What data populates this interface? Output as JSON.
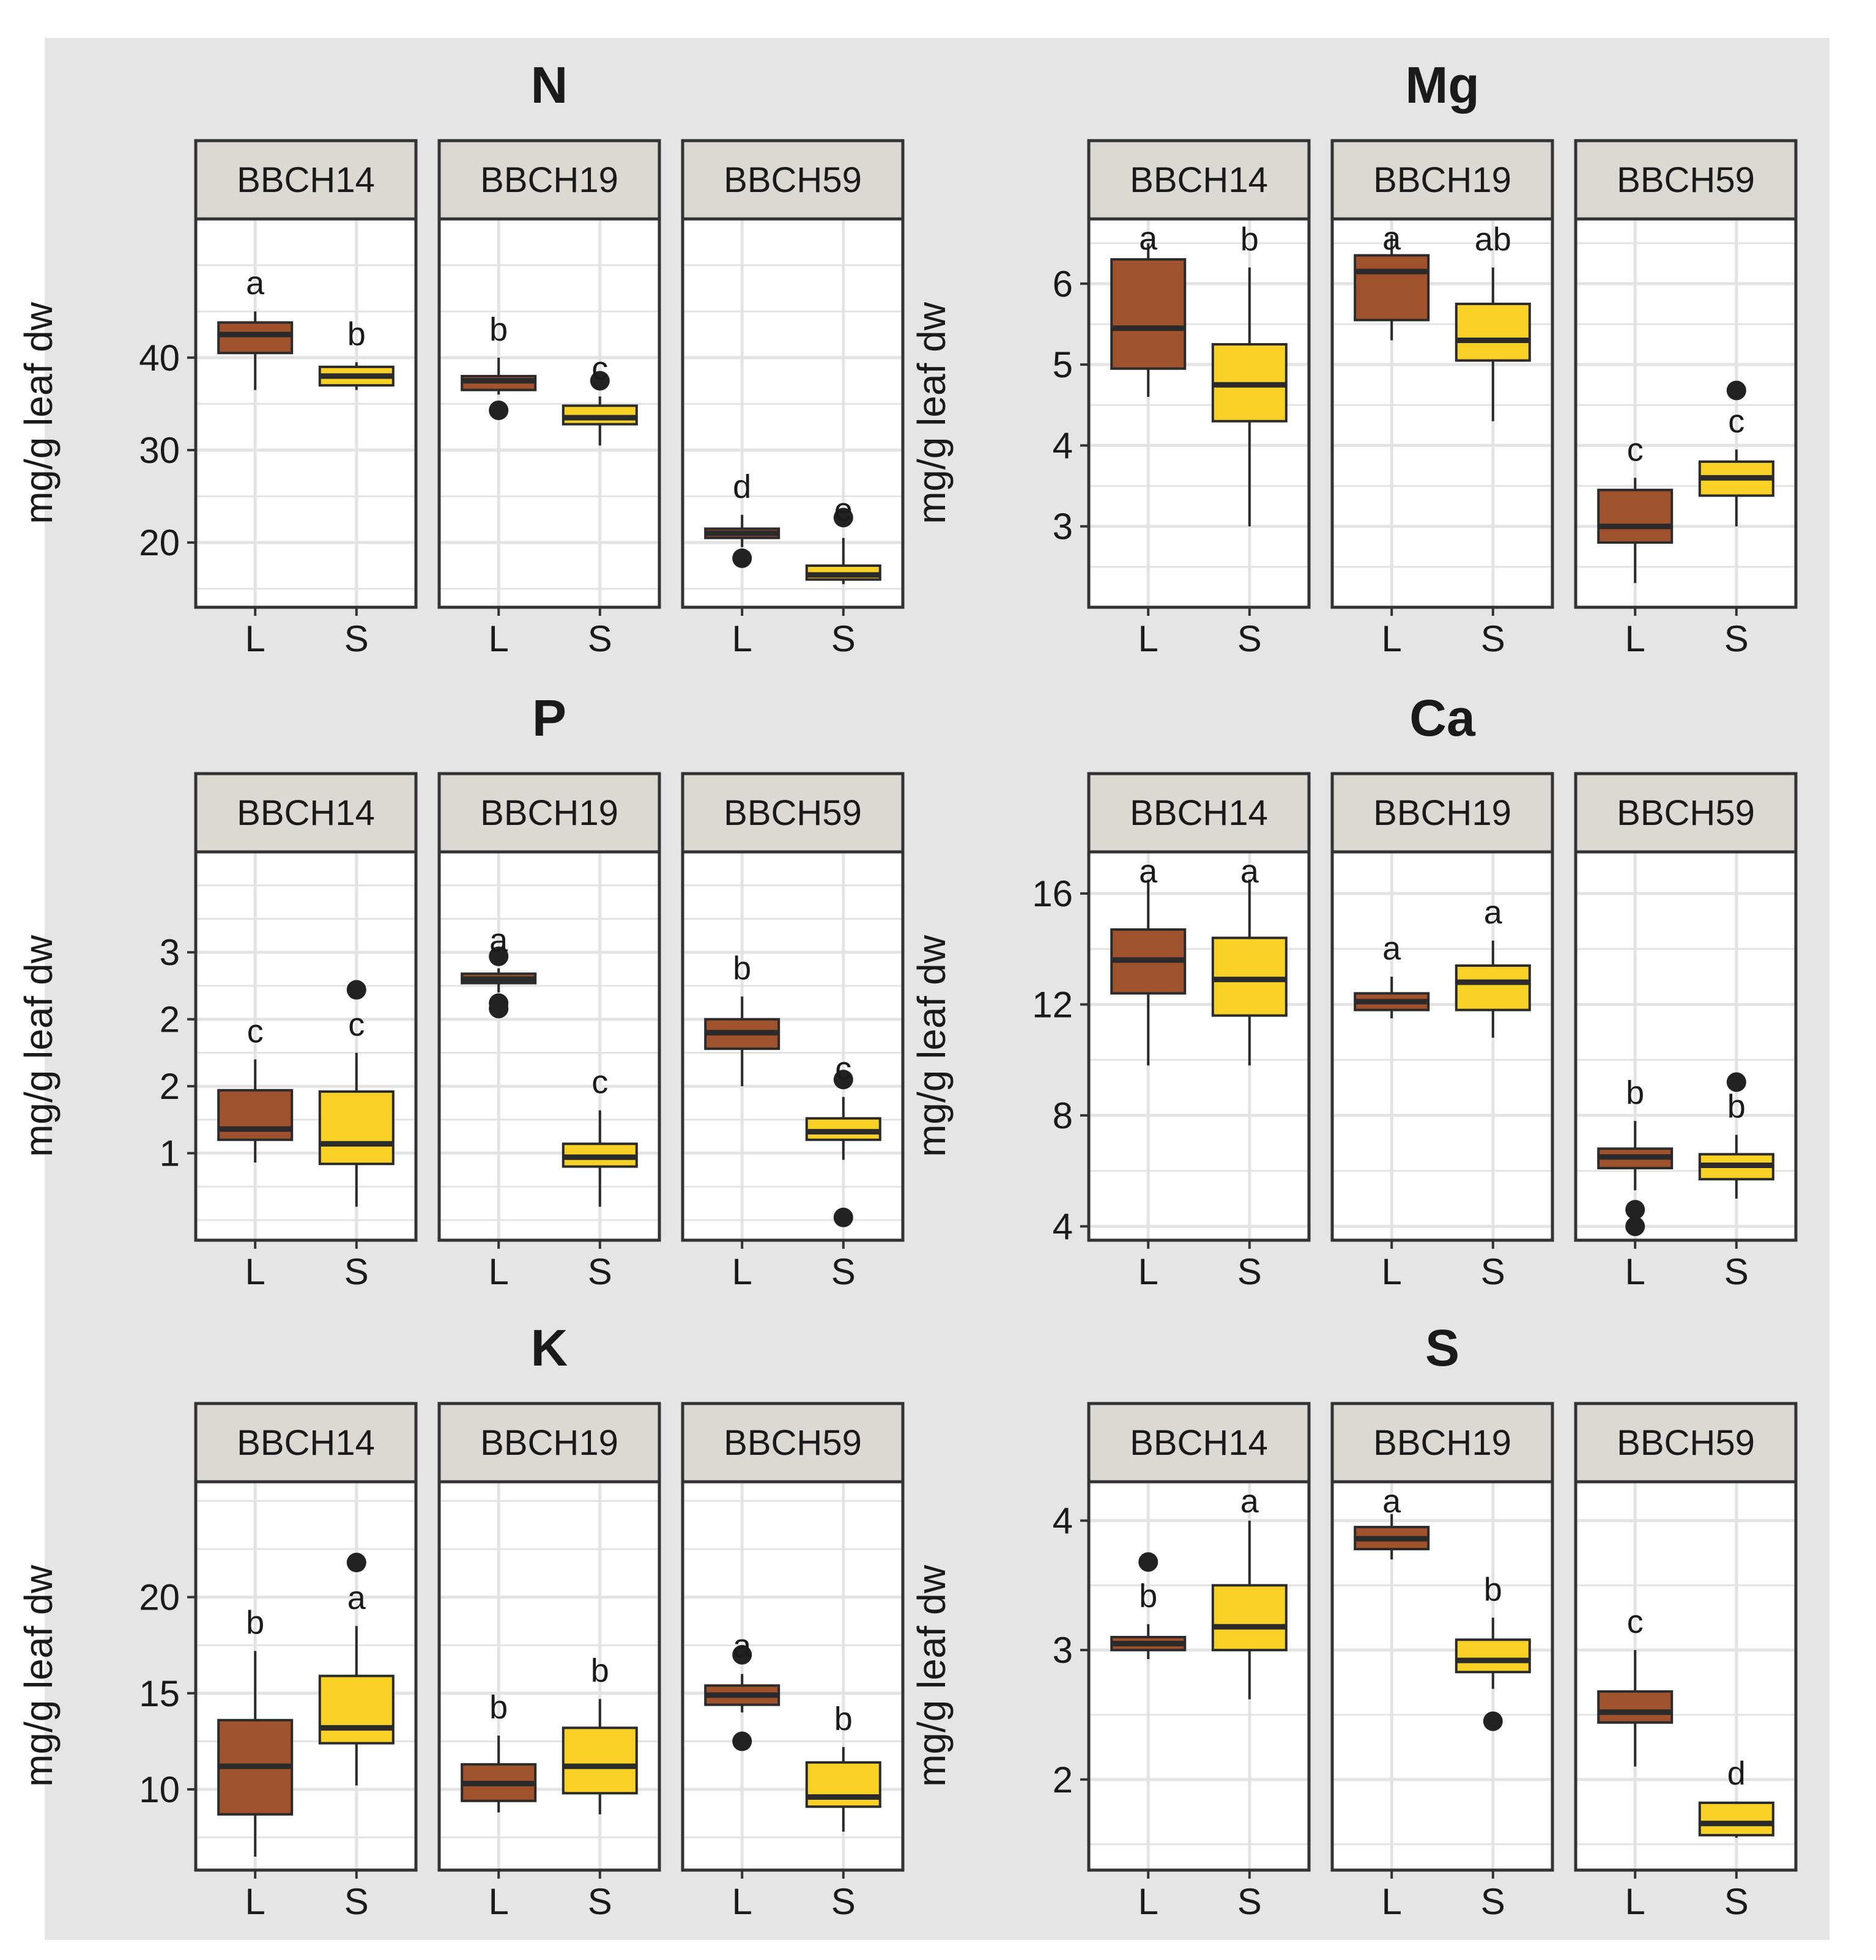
{
  "figure": {
    "ylabel": "mg/g leaf dw",
    "stages": [
      "BBCH14",
      "BBCH19",
      "BBCH59"
    ],
    "categories": [
      "L",
      "S"
    ]
  },
  "colors": {
    "figure_bg": "#e5e5e5",
    "panel_bg": "#ffffff",
    "strip_bg": "#dcd8d4",
    "grid": "#e3e3e3",
    "frame": "#333333",
    "L": "#a0522d",
    "S": "#f9d126",
    "outline": "#2b2b2b"
  },
  "chart_data": [
    {
      "type": "boxplot",
      "title": "N",
      "ylabel": "mg/g leaf dw",
      "xlabel": "",
      "ylim": [
        13,
        55
      ],
      "yticks": [
        20,
        30,
        40
      ],
      "ytick_labels": [
        "20",
        "30",
        "40"
      ],
      "facets": [
        {
          "stage": "BBCH14",
          "boxes": [
            {
              "cat": "L",
              "fill": "L",
              "min": 36.5,
              "q1": 40.5,
              "median": 42.5,
              "q3": 43.8,
              "max": 45.0,
              "outliers": [],
              "letter": "a"
            },
            {
              "cat": "S",
              "fill": "S",
              "min": 36.5,
              "q1": 37.0,
              "median": 38.0,
              "q3": 39.0,
              "max": 39.5,
              "outliers": [],
              "letter": "b"
            }
          ]
        },
        {
          "stage": "BBCH19",
          "boxes": [
            {
              "cat": "L",
              "fill": "L",
              "min": 36.0,
              "q1": 36.5,
              "median": 37.5,
              "q3": 38.0,
              "max": 40.0,
              "outliers": [
                34.3
              ],
              "letter": "b"
            },
            {
              "cat": "S",
              "fill": "S",
              "min": 30.5,
              "q1": 32.8,
              "median": 33.5,
              "q3": 34.8,
              "max": 35.8,
              "outliers": [
                37.5
              ],
              "letter": "c"
            }
          ]
        },
        {
          "stage": "BBCH59",
          "boxes": [
            {
              "cat": "L",
              "fill": "L",
              "min": 19.5,
              "q1": 20.5,
              "median": 21.0,
              "q3": 21.5,
              "max": 23.0,
              "outliers": [
                18.3
              ],
              "letter": "d"
            },
            {
              "cat": "S",
              "fill": "S",
              "min": 15.5,
              "q1": 16.0,
              "median": 16.5,
              "q3": 17.5,
              "max": 20.5,
              "outliers": [
                22.7
              ],
              "letter": "e"
            }
          ]
        }
      ]
    },
    {
      "type": "boxplot",
      "title": "Mg",
      "ylabel": "mg/g leaf dw",
      "xlabel": "",
      "ylim": [
        2.0,
        6.8
      ],
      "yticks": [
        3,
        4,
        5,
        6
      ],
      "ytick_labels": [
        "3",
        "4",
        "5",
        "6"
      ],
      "facets": [
        {
          "stage": "BBCH14",
          "boxes": [
            {
              "cat": "L",
              "fill": "L",
              "min": 4.6,
              "q1": 4.95,
              "median": 5.45,
              "q3": 6.3,
              "max": 6.5,
              "outliers": [],
              "letter": "a"
            },
            {
              "cat": "S",
              "fill": "S",
              "min": 3.0,
              "q1": 4.3,
              "median": 4.75,
              "q3": 5.25,
              "max": 6.2,
              "outliers": [],
              "letter": "b"
            }
          ]
        },
        {
          "stage": "BBCH19",
          "boxes": [
            {
              "cat": "L",
              "fill": "L",
              "min": 5.3,
              "q1": 5.55,
              "median": 6.15,
              "q3": 6.35,
              "max": 6.6,
              "outliers": [],
              "letter": "a"
            },
            {
              "cat": "S",
              "fill": "S",
              "min": 4.3,
              "q1": 5.05,
              "median": 5.3,
              "q3": 5.75,
              "max": 6.2,
              "outliers": [],
              "letter": "ab"
            }
          ]
        },
        {
          "stage": "BBCH59",
          "boxes": [
            {
              "cat": "L",
              "fill": "L",
              "min": 2.3,
              "q1": 2.8,
              "median": 3.0,
              "q3": 3.45,
              "max": 3.6,
              "outliers": [],
              "letter": "c"
            },
            {
              "cat": "S",
              "fill": "S",
              "min": 3.0,
              "q1": 3.38,
              "median": 3.6,
              "q3": 3.8,
              "max": 3.95,
              "outliers": [
                4.68
              ],
              "letter": "c"
            }
          ]
        }
      ]
    },
    {
      "type": "boxplot",
      "title": "P",
      "ylabel": "mg/g leaf dw",
      "xlabel": "",
      "ylim": [
        0.35,
        3.25
      ],
      "yticks": [
        1.0,
        1.5,
        2.0,
        2.5
      ],
      "ytick_labels": [
        "1",
        "2",
        "2",
        "3"
      ],
      "facets": [
        {
          "stage": "BBCH14",
          "boxes": [
            {
              "cat": "L",
              "fill": "L",
              "min": 0.93,
              "q1": 1.1,
              "median": 1.18,
              "q3": 1.47,
              "max": 1.7,
              "outliers": [],
              "letter": "c"
            },
            {
              "cat": "S",
              "fill": "S",
              "min": 0.6,
              "q1": 0.92,
              "median": 1.07,
              "q3": 1.46,
              "max": 1.75,
              "outliers": [
                2.22
              ],
              "letter": "c"
            }
          ]
        },
        {
          "stage": "BBCH19",
          "boxes": [
            {
              "cat": "L",
              "fill": "L",
              "min": 2.2,
              "q1": 2.27,
              "median": 2.3,
              "q3": 2.34,
              "max": 2.38,
              "outliers": [
                2.08,
                2.12,
                2.47
              ],
              "letter": "a"
            },
            {
              "cat": "S",
              "fill": "S",
              "min": 0.6,
              "q1": 0.9,
              "median": 0.97,
              "q3": 1.07,
              "max": 1.32,
              "outliers": [],
              "letter": "c"
            }
          ]
        },
        {
          "stage": "BBCH59",
          "boxes": [
            {
              "cat": "L",
              "fill": "L",
              "min": 1.5,
              "q1": 1.78,
              "median": 1.9,
              "q3": 2.0,
              "max": 2.17,
              "outliers": [],
              "letter": "b"
            },
            {
              "cat": "S",
              "fill": "S",
              "min": 0.95,
              "q1": 1.1,
              "median": 1.16,
              "q3": 1.26,
              "max": 1.42,
              "outliers": [
                1.55,
                0.52
              ],
              "letter": "c"
            }
          ]
        }
      ]
    },
    {
      "type": "boxplot",
      "title": "Ca",
      "ylabel": "mg/g leaf dw",
      "xlabel": "",
      "ylim": [
        3.5,
        17.5
      ],
      "yticks": [
        4,
        8,
        12,
        16
      ],
      "ytick_labels": [
        "4",
        "8",
        "12",
        "16"
      ],
      "facets": [
        {
          "stage": "BBCH14",
          "boxes": [
            {
              "cat": "L",
              "fill": "L",
              "min": 9.8,
              "q1": 12.4,
              "median": 13.6,
              "q3": 14.7,
              "max": 16.5,
              "outliers": [],
              "letter": "a"
            },
            {
              "cat": "S",
              "fill": "S",
              "min": 9.8,
              "q1": 11.6,
              "median": 12.9,
              "q3": 14.4,
              "max": 16.5,
              "outliers": [],
              "letter": "a"
            }
          ]
        },
        {
          "stage": "BBCH19",
          "boxes": [
            {
              "cat": "L",
              "fill": "L",
              "min": 11.5,
              "q1": 11.8,
              "median": 12.1,
              "q3": 12.4,
              "max": 13.0,
              "outliers": [],
              "letter": "a"
            },
            {
              "cat": "S",
              "fill": "S",
              "min": 10.8,
              "q1": 11.8,
              "median": 12.8,
              "q3": 13.4,
              "max": 14.3,
              "outliers": [],
              "letter": "a"
            }
          ]
        },
        {
          "stage": "BBCH59",
          "boxes": [
            {
              "cat": "L",
              "fill": "L",
              "min": 5.3,
              "q1": 6.1,
              "median": 6.5,
              "q3": 6.8,
              "max": 7.8,
              "outliers": [
                4.6,
                4.0
              ],
              "letter": "b"
            },
            {
              "cat": "S",
              "fill": "S",
              "min": 5.0,
              "q1": 5.7,
              "median": 6.2,
              "q3": 6.6,
              "max": 7.3,
              "outliers": [
                9.2
              ],
              "letter": "b"
            }
          ]
        }
      ]
    },
    {
      "type": "boxplot",
      "title": "K",
      "ylabel": "mg/g leaf dw",
      "xlabel": "",
      "ylim": [
        5.8,
        26
      ],
      "yticks": [
        10,
        15,
        20
      ],
      "ytick_labels": [
        "10",
        "15",
        "20"
      ],
      "facets": [
        {
          "stage": "BBCH14",
          "boxes": [
            {
              "cat": "L",
              "fill": "L",
              "min": 6.5,
              "q1": 8.7,
              "median": 11.2,
              "q3": 13.6,
              "max": 17.2,
              "outliers": [],
              "letter": "b"
            },
            {
              "cat": "S",
              "fill": "S",
              "min": 10.2,
              "q1": 12.4,
              "median": 13.2,
              "q3": 15.9,
              "max": 18.5,
              "outliers": [
                21.8
              ],
              "letter": "a"
            }
          ]
        },
        {
          "stage": "BBCH19",
          "boxes": [
            {
              "cat": "L",
              "fill": "L",
              "min": 8.8,
              "q1": 9.4,
              "median": 10.3,
              "q3": 11.3,
              "max": 12.8,
              "outliers": [],
              "letter": "b"
            },
            {
              "cat": "S",
              "fill": "S",
              "min": 8.7,
              "q1": 9.8,
              "median": 11.2,
              "q3": 13.2,
              "max": 14.7,
              "outliers": [],
              "letter": "b"
            }
          ]
        },
        {
          "stage": "BBCH59",
          "boxes": [
            {
              "cat": "L",
              "fill": "L",
              "min": 14.0,
              "q1": 14.4,
              "median": 14.9,
              "q3": 15.4,
              "max": 16.0,
              "outliers": [
                17.0,
                12.5
              ],
              "letter": "a"
            },
            {
              "cat": "S",
              "fill": "S",
              "min": 7.8,
              "q1": 9.1,
              "median": 9.6,
              "q3": 11.4,
              "max": 12.2,
              "outliers": [],
              "letter": "b"
            }
          ]
        }
      ]
    },
    {
      "type": "boxplot",
      "title": "S",
      "ylabel": "mg/g leaf dw",
      "xlabel": "",
      "ylim": [
        1.3,
        4.3
      ],
      "yticks": [
        2,
        3,
        4
      ],
      "ytick_labels": [
        "2",
        "3",
        "4"
      ],
      "facets": [
        {
          "stage": "BBCH14",
          "boxes": [
            {
              "cat": "L",
              "fill": "L",
              "min": 2.93,
              "q1": 3.0,
              "median": 3.05,
              "q3": 3.1,
              "max": 3.2,
              "outliers": [
                3.68
              ],
              "letter": "b"
            },
            {
              "cat": "S",
              "fill": "S",
              "min": 2.62,
              "q1": 3.0,
              "median": 3.18,
              "q3": 3.5,
              "max": 4.0,
              "outliers": [],
              "letter": "a"
            }
          ]
        },
        {
          "stage": "BBCH19",
          "boxes": [
            {
              "cat": "L",
              "fill": "L",
              "min": 3.7,
              "q1": 3.78,
              "median": 3.86,
              "q3": 3.95,
              "max": 4.05,
              "outliers": [],
              "letter": "a"
            },
            {
              "cat": "S",
              "fill": "S",
              "min": 2.7,
              "q1": 2.83,
              "median": 2.92,
              "q3": 3.08,
              "max": 3.25,
              "outliers": [
                2.45
              ],
              "letter": "b"
            }
          ]
        },
        {
          "stage": "BBCH59",
          "boxes": [
            {
              "cat": "L",
              "fill": "L",
              "min": 2.1,
              "q1": 2.44,
              "median": 2.52,
              "q3": 2.68,
              "max": 3.0,
              "outliers": [],
              "letter": "c"
            },
            {
              "cat": "S",
              "fill": "S",
              "min": 1.55,
              "q1": 1.57,
              "median": 1.66,
              "q3": 1.82,
              "max": 1.83,
              "outliers": [],
              "letter": "d"
            }
          ]
        }
      ]
    }
  ]
}
